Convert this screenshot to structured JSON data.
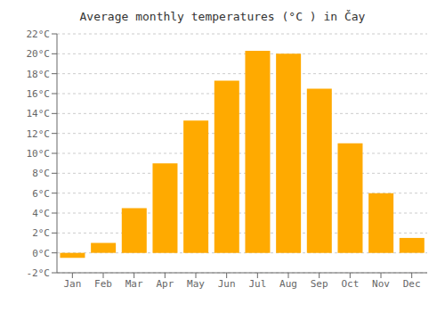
{
  "chart_data": {
    "type": "bar",
    "title": "Average monthly temperatures (°C ) in Čay",
    "categories": [
      "Jan",
      "Feb",
      "Mar",
      "Apr",
      "May",
      "Jun",
      "Jul",
      "Aug",
      "Sep",
      "Oct",
      "Nov",
      "Dec"
    ],
    "values": [
      -0.5,
      1.0,
      4.5,
      9.0,
      13.3,
      17.3,
      20.3,
      20.0,
      16.5,
      11.0,
      6.0,
      1.5
    ],
    "color": "#FFAA00",
    "ylim": [
      -2,
      22
    ],
    "yticks": [
      {
        "value": -2,
        "label": "-2°C"
      },
      {
        "value": 0,
        "label": "0°C"
      },
      {
        "value": 2,
        "label": "2°C"
      },
      {
        "value": 4,
        "label": "4°C"
      },
      {
        "value": 6,
        "label": "6°C"
      },
      {
        "value": 8,
        "label": "8°C"
      },
      {
        "value": 10,
        "label": "10°C"
      },
      {
        "value": 12,
        "label": "12°C"
      },
      {
        "value": 14,
        "label": "14°C"
      },
      {
        "value": 16,
        "label": "16°C"
      },
      {
        "value": 18,
        "label": "18°C"
      },
      {
        "value": 20,
        "label": "20°C"
      },
      {
        "value": 22,
        "label": "22°C"
      }
    ],
    "grid": true
  }
}
